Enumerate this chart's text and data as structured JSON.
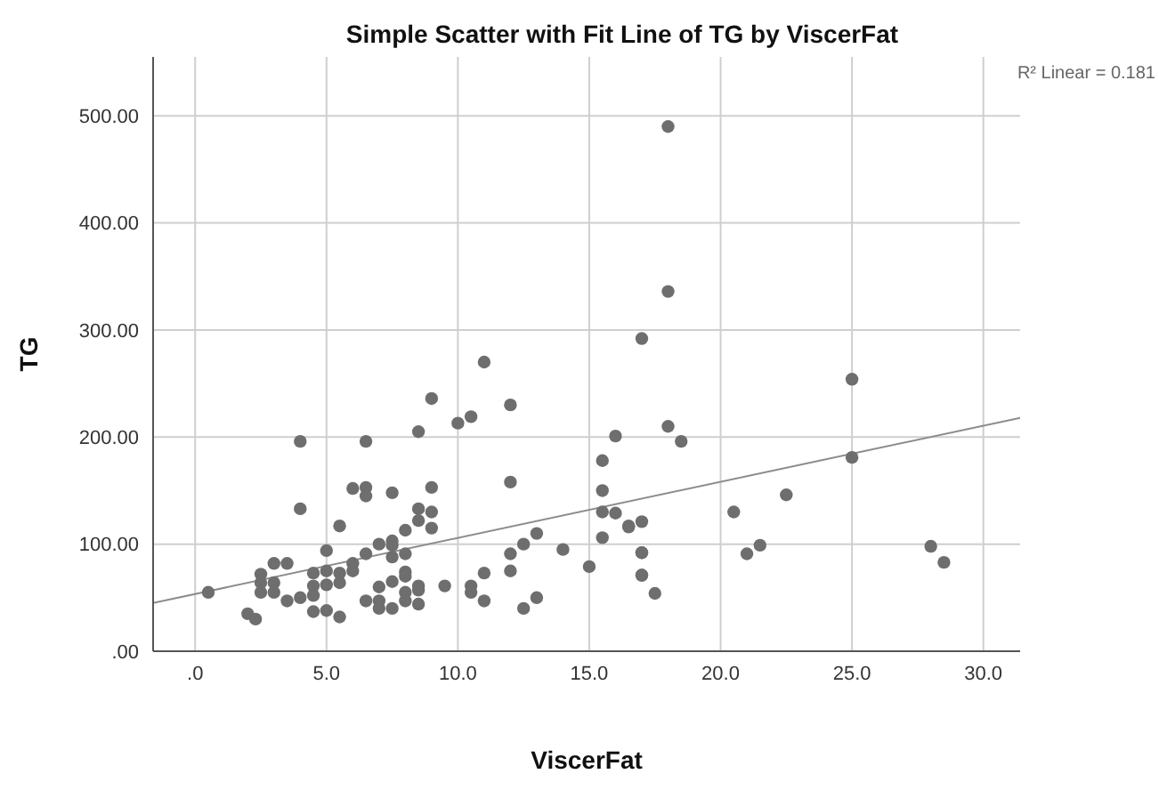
{
  "chart_data": {
    "type": "scatter",
    "title": "Simple Scatter with Fit Line of TG by ViscerFat",
    "xlabel": "ViscerFat",
    "ylabel": "TG",
    "annotations": [
      "R² Linear = 0.181"
    ],
    "xlim": [
      -1.6,
      31.4
    ],
    "ylim": [
      0,
      555
    ],
    "xticks": [
      {
        "value": 0,
        "label": ".0"
      },
      {
        "value": 5,
        "label": "5.0"
      },
      {
        "value": 10,
        "label": "10.0"
      },
      {
        "value": 15,
        "label": "15.0"
      },
      {
        "value": 20,
        "label": "20.0"
      },
      {
        "value": 25,
        "label": "25.0"
      },
      {
        "value": 30,
        "label": "30.0"
      }
    ],
    "yticks": [
      {
        "value": 0,
        "label": ".00"
      },
      {
        "value": 100,
        "label": "100.00"
      },
      {
        "value": 200,
        "label": "200.00"
      },
      {
        "value": 300,
        "label": "300.00"
      },
      {
        "value": 400,
        "label": "400.00"
      },
      {
        "value": 500,
        "label": "500.00"
      }
    ],
    "grid": true,
    "series": [
      {
        "marker": "circle",
        "color": "#6e6e6e",
        "x": [
          17,
          11,
          9,
          12,
          10,
          10.5,
          8.5,
          4,
          6.5,
          16,
          15.5,
          12,
          6,
          6.5,
          6.5,
          7.5,
          9,
          15.5,
          4,
          8.5,
          9,
          8.5,
          9,
          5.5,
          15.5,
          16,
          16.5,
          17,
          8,
          13,
          12.5,
          15.5,
          7,
          7.5,
          7.5,
          6.5,
          7.5,
          8,
          5,
          12,
          14,
          17,
          6,
          3,
          3.5,
          2.5,
          2.5,
          2.5,
          3,
          3,
          4.5,
          5,
          5.5,
          5.5,
          5,
          4.5,
          4.5,
          6,
          3.5,
          4,
          0.5,
          2,
          2.3,
          4.5,
          5,
          5.5,
          6.5,
          7,
          7,
          7,
          7.5,
          7.5,
          8,
          8,
          8,
          8,
          8.5,
          8.5,
          8.5,
          9.5,
          10.5,
          10.5,
          11,
          11,
          12,
          12.5,
          13,
          15,
          17,
          18,
          25,
          18,
          18.5,
          25,
          22.5,
          20.5,
          16.5,
          17,
          17,
          17.5,
          21,
          21.5,
          28,
          28.5,
          18
        ],
        "values": [
          292,
          270,
          236,
          230,
          213,
          219,
          205,
          196,
          196,
          201,
          178,
          158,
          152,
          153,
          145,
          148,
          153,
          150,
          133,
          133,
          130,
          122,
          115,
          117,
          130,
          129,
          117,
          121,
          113,
          110,
          100,
          106,
          100,
          103,
          99,
          91,
          88,
          91,
          94,
          91,
          95,
          92,
          82,
          82,
          82,
          72,
          64,
          55,
          64,
          55,
          73,
          75,
          73,
          64,
          62,
          61,
          52,
          75,
          47,
          50,
          55,
          35,
          30,
          37,
          38,
          32,
          47,
          60,
          47,
          40,
          65,
          40,
          74,
          70,
          55,
          47,
          61,
          57,
          44,
          61,
          61,
          55,
          73,
          47,
          75,
          40,
          50,
          79,
          71,
          336,
          254,
          210,
          196,
          181,
          146,
          130,
          116,
          71,
          92,
          54,
          91,
          99,
          98,
          83,
          490
        ]
      },
      {
        "type": "line",
        "color": "#8c8c8c",
        "x": [
          -1.6,
          31.4
        ],
        "values": [
          45,
          218
        ]
      }
    ]
  }
}
